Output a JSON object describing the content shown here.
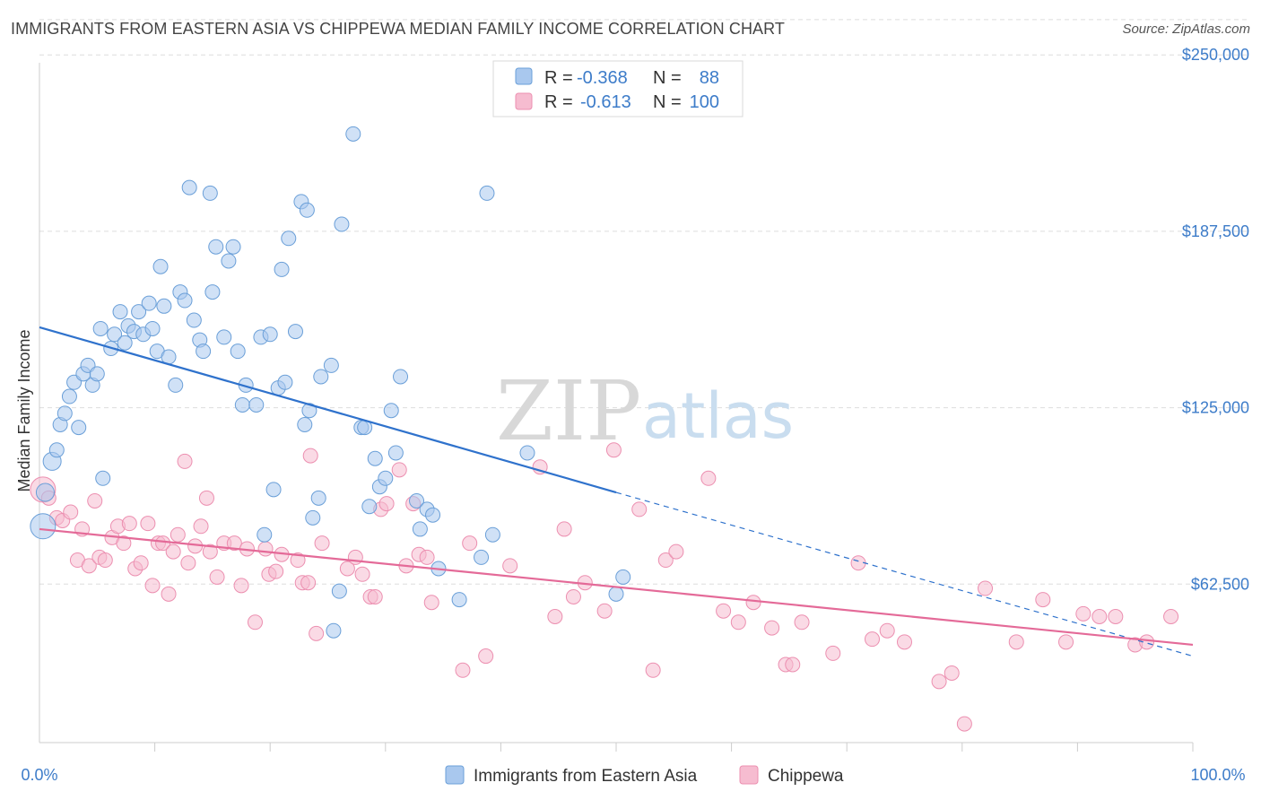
{
  "header": {
    "title": "IMMIGRANTS FROM EASTERN ASIA VS CHIPPEWA MEDIAN FAMILY INCOME CORRELATION CHART",
    "source": "Source: ZipAtlas.com"
  },
  "watermark": {
    "zip": "ZIP",
    "atlas": "atlas"
  },
  "colors": {
    "blue_fill": "#a9c8ee",
    "blue_stroke": "#6a9fd8",
    "blue_line": "#2f72cc",
    "pink_fill": "#f6bcd0",
    "pink_stroke": "#ec8fb0",
    "pink_line": "#e46a98",
    "tick_label": "#3d7cc9",
    "grid": "#dddddd"
  },
  "legend": {
    "rows": [
      {
        "r_label": "R =",
        "r_value": "-0.368",
        "n_label": "N =",
        "n_value": "88"
      },
      {
        "r_label": "R =",
        "r_value": "-0.613",
        "n_label": "N =",
        "n_value": "100"
      }
    ]
  },
  "chart_data": {
    "type": "scatter",
    "title": "IMMIGRANTS FROM EASTERN ASIA VS CHIPPEWA MEDIAN FAMILY INCOME CORRELATION CHART",
    "xlabel": "",
    "ylabel": "Median Family Income",
    "xlim": [
      0,
      100
    ],
    "ylim": [
      0,
      265000
    ],
    "x_tick_labels": [
      "0.0%",
      "100.0%"
    ],
    "y_ticks": [
      62500,
      125000,
      187500,
      250000
    ],
    "y_tick_labels": [
      "$62,500",
      "$125,000",
      "$187,500",
      "$250,000"
    ],
    "legend_position": "top-center",
    "series": [
      {
        "name": "Immigrants from Eastern Asia",
        "color": "#a9c8ee",
        "r": -0.368,
        "n": 88,
        "trend": {
          "x0": 0,
          "y0": 153500,
          "x1": 50,
          "y1": 95000,
          "dash_x1": 100,
          "dash_y1": 37000
        },
        "points": [
          [
            0.3,
            83000,
            14
          ],
          [
            0.5,
            95000,
            10
          ],
          [
            1.1,
            106000,
            10
          ],
          [
            1.5,
            110000,
            8
          ],
          [
            1.8,
            119000,
            8
          ],
          [
            2.2,
            123000,
            8
          ],
          [
            2.6,
            129000,
            8
          ],
          [
            3.0,
            134000,
            8
          ],
          [
            3.4,
            118000,
            8
          ],
          [
            3.8,
            137000,
            8
          ],
          [
            4.2,
            140000,
            8
          ],
          [
            4.6,
            133000,
            8
          ],
          [
            5.0,
            137000,
            8
          ],
          [
            5.5,
            100000,
            8
          ],
          [
            5.3,
            153000,
            8
          ],
          [
            6.2,
            146000,
            8
          ],
          [
            6.5,
            151000,
            8
          ],
          [
            7.0,
            159000,
            8
          ],
          [
            7.4,
            148000,
            8
          ],
          [
            7.7,
            154000,
            8
          ],
          [
            8.2,
            152000,
            8
          ],
          [
            8.6,
            159000,
            8
          ],
          [
            9.0,
            151000,
            8
          ],
          [
            9.5,
            162000,
            8
          ],
          [
            9.8,
            153000,
            8
          ],
          [
            10.2,
            145000,
            8
          ],
          [
            10.5,
            175000,
            8
          ],
          [
            10.8,
            161000,
            8
          ],
          [
            11.2,
            143000,
            8
          ],
          [
            11.8,
            133000,
            8
          ],
          [
            12.2,
            166000,
            8
          ],
          [
            12.6,
            163000,
            8
          ],
          [
            13.0,
            203000,
            8
          ],
          [
            13.4,
            156000,
            8
          ],
          [
            13.9,
            149000,
            8
          ],
          [
            14.2,
            145000,
            8
          ],
          [
            14.8,
            201000,
            8
          ],
          [
            15.0,
            166000,
            8
          ],
          [
            15.3,
            182000,
            8
          ],
          [
            16.0,
            150000,
            8
          ],
          [
            16.4,
            177000,
            8
          ],
          [
            16.8,
            182000,
            8
          ],
          [
            17.2,
            145000,
            8
          ],
          [
            17.6,
            126000,
            8
          ],
          [
            17.9,
            133000,
            8
          ],
          [
            18.8,
            126000,
            8
          ],
          [
            19.2,
            150000,
            8
          ],
          [
            19.5,
            80000,
            8
          ],
          [
            20.0,
            151000,
            8
          ],
          [
            20.3,
            96000,
            8
          ],
          [
            20.7,
            132000,
            8
          ],
          [
            21.0,
            174000,
            8
          ],
          [
            21.3,
            134000,
            8
          ],
          [
            21.6,
            185000,
            8
          ],
          [
            22.2,
            152000,
            8
          ],
          [
            22.7,
            198000,
            8
          ],
          [
            23.2,
            195000,
            8
          ],
          [
            23.0,
            119000,
            8
          ],
          [
            23.4,
            124000,
            8
          ],
          [
            23.7,
            86000,
            8
          ],
          [
            24.2,
            93000,
            8
          ],
          [
            24.4,
            136000,
            8
          ],
          [
            25.3,
            140000,
            8
          ],
          [
            26.0,
            60000,
            8
          ],
          [
            25.5,
            46000,
            8
          ],
          [
            26.2,
            190000,
            8
          ],
          [
            27.2,
            222000,
            8
          ],
          [
            27.9,
            118000,
            8
          ],
          [
            28.2,
            118000,
            8
          ],
          [
            28.6,
            90000,
            8
          ],
          [
            29.1,
            107000,
            8
          ],
          [
            29.5,
            97000,
            8
          ],
          [
            30.0,
            100000,
            8
          ],
          [
            30.5,
            124000,
            8
          ],
          [
            30.9,
            109000,
            8
          ],
          [
            31.3,
            136000,
            8
          ],
          [
            32.7,
            92000,
            8
          ],
          [
            33.0,
            82000,
            8
          ],
          [
            33.6,
            89000,
            8
          ],
          [
            34.1,
            87000,
            8
          ],
          [
            34.6,
            68000,
            8
          ],
          [
            36.4,
            57000,
            8
          ],
          [
            38.3,
            72000,
            8
          ],
          [
            38.8,
            201000,
            8
          ],
          [
            39.3,
            80000,
            8
          ],
          [
            42.3,
            109000,
            8
          ],
          [
            50.6,
            65000,
            8
          ],
          [
            50.0,
            59000,
            8
          ]
        ]
      },
      {
        "name": "Chippewa",
        "color": "#f6bcd0",
        "r": -0.613,
        "n": 100,
        "trend": {
          "x0": 0,
          "y0": 82000,
          "x1": 100,
          "y1": 41000
        },
        "points": [
          [
            0.3,
            96000,
            14
          ],
          [
            0.8,
            93000,
            8
          ],
          [
            1.5,
            86000,
            8
          ],
          [
            2.0,
            85000,
            8
          ],
          [
            2.7,
            88000,
            8
          ],
          [
            3.3,
            71000,
            8
          ],
          [
            3.7,
            82000,
            8
          ],
          [
            4.3,
            69000,
            8
          ],
          [
            4.8,
            92000,
            8
          ],
          [
            5.2,
            72000,
            8
          ],
          [
            5.7,
            71000,
            8
          ],
          [
            6.3,
            79000,
            8
          ],
          [
            6.8,
            83000,
            8
          ],
          [
            7.3,
            77000,
            8
          ],
          [
            7.8,
            84000,
            8
          ],
          [
            8.3,
            68000,
            8
          ],
          [
            8.8,
            70000,
            8
          ],
          [
            9.4,
            84000,
            8
          ],
          [
            9.8,
            62000,
            8
          ],
          [
            10.3,
            77000,
            8
          ],
          [
            10.7,
            77000,
            8
          ],
          [
            11.2,
            59000,
            8
          ],
          [
            11.6,
            74000,
            8
          ],
          [
            12.0,
            80000,
            8
          ],
          [
            12.6,
            106000,
            8
          ],
          [
            12.9,
            70000,
            8
          ],
          [
            13.5,
            76000,
            8
          ],
          [
            14.0,
            83000,
            8
          ],
          [
            14.5,
            93000,
            8
          ],
          [
            14.8,
            74000,
            8
          ],
          [
            15.4,
            65000,
            8
          ],
          [
            16.0,
            77000,
            8
          ],
          [
            16.9,
            77000,
            8
          ],
          [
            17.5,
            62000,
            8
          ],
          [
            18.0,
            75000,
            8
          ],
          [
            18.7,
            49000,
            8
          ],
          [
            19.6,
            75000,
            8
          ],
          [
            19.9,
            66000,
            8
          ],
          [
            20.5,
            67000,
            8
          ],
          [
            21.0,
            73000,
            8
          ],
          [
            22.4,
            71000,
            8
          ],
          [
            22.8,
            63000,
            8
          ],
          [
            23.3,
            63000,
            8
          ],
          [
            23.5,
            108000,
            8
          ],
          [
            24.0,
            45000,
            8
          ],
          [
            24.5,
            77000,
            8
          ],
          [
            26.7,
            68000,
            8
          ],
          [
            27.4,
            72000,
            8
          ],
          [
            28.0,
            66000,
            8
          ],
          [
            28.7,
            58000,
            8
          ],
          [
            29.1,
            58000,
            8
          ],
          [
            29.6,
            89000,
            8
          ],
          [
            30.1,
            91000,
            8
          ],
          [
            31.2,
            103000,
            8
          ],
          [
            31.8,
            69000,
            8
          ],
          [
            32.4,
            91000,
            8
          ],
          [
            32.9,
            73000,
            8
          ],
          [
            33.6,
            72000,
            8
          ],
          [
            34.0,
            56000,
            8
          ],
          [
            36.7,
            32000,
            8
          ],
          [
            37.3,
            77000,
            8
          ],
          [
            38.7,
            37000,
            8
          ],
          [
            40.8,
            69000,
            8
          ],
          [
            43.4,
            104000,
            8
          ],
          [
            44.7,
            51000,
            8
          ],
          [
            45.5,
            82000,
            8
          ],
          [
            46.3,
            58000,
            8
          ],
          [
            47.3,
            63000,
            8
          ],
          [
            49.0,
            53000,
            8
          ],
          [
            49.8,
            110000,
            8
          ],
          [
            52.0,
            89000,
            8
          ],
          [
            53.2,
            32000,
            8
          ],
          [
            54.3,
            71000,
            8
          ],
          [
            55.2,
            74000,
            8
          ],
          [
            58.0,
            100000,
            8
          ],
          [
            59.3,
            53000,
            8
          ],
          [
            60.6,
            49000,
            8
          ],
          [
            61.9,
            56000,
            8
          ],
          [
            63.5,
            47000,
            8
          ],
          [
            64.7,
            34000,
            8
          ],
          [
            65.3,
            34000,
            8
          ],
          [
            66.1,
            49000,
            8
          ],
          [
            68.8,
            38000,
            8
          ],
          [
            71.0,
            70000,
            8
          ],
          [
            72.2,
            43000,
            8
          ],
          [
            73.5,
            46000,
            8
          ],
          [
            75.0,
            42000,
            8
          ],
          [
            78.0,
            28000,
            8
          ],
          [
            79.1,
            31000,
            8
          ],
          [
            80.2,
            13000,
            8
          ],
          [
            82.0,
            61000,
            8
          ],
          [
            84.7,
            42000,
            8
          ],
          [
            87.0,
            57000,
            8
          ],
          [
            89.0,
            42000,
            8
          ],
          [
            90.5,
            52000,
            8
          ],
          [
            91.9,
            51000,
            8
          ],
          [
            93.3,
            51000,
            8
          ],
          [
            95.0,
            41000,
            8
          ],
          [
            96.0,
            42000,
            8
          ],
          [
            98.1,
            51000,
            8
          ]
        ]
      }
    ]
  }
}
